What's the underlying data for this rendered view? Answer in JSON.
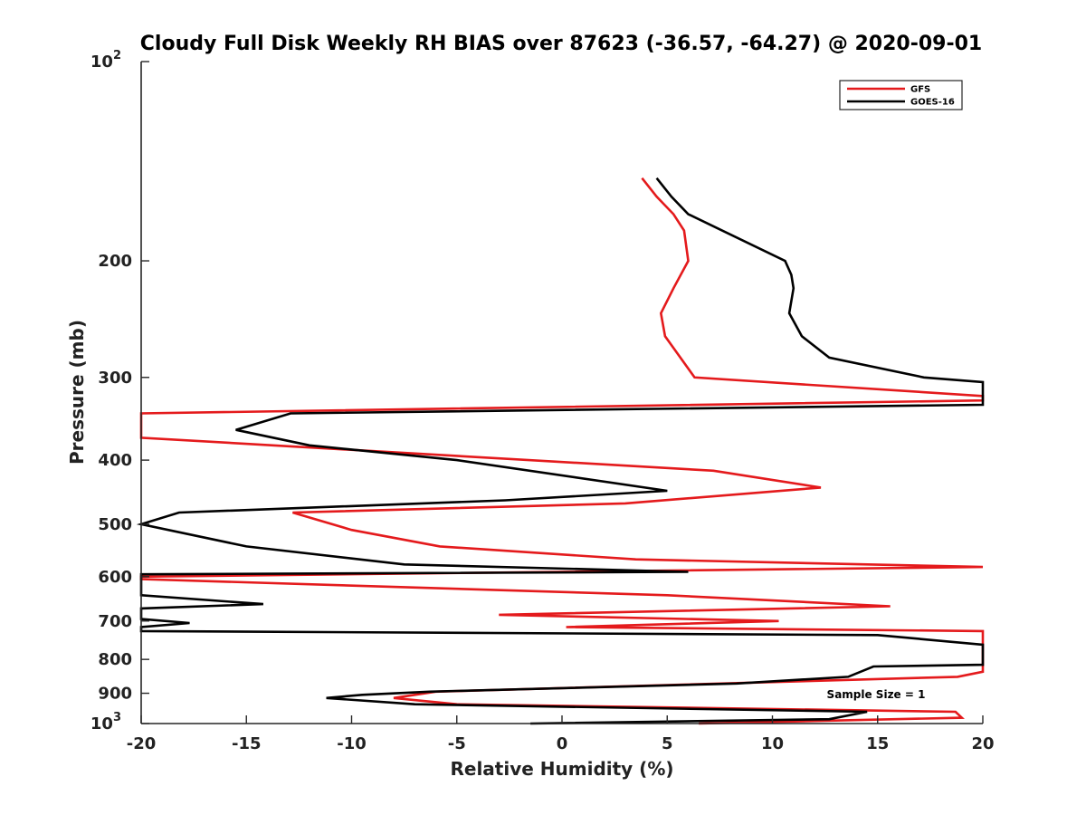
{
  "chart_data": {
    "type": "line",
    "title": "Cloudy Full Disk Weekly RH BIAS over 87623 (-36.57, -64.27) @ 2020-09-01",
    "xlabel": "Relative Humidity (%)",
    "ylabel": "Pressure (mb)",
    "xlim": [
      -20,
      20
    ],
    "ylim": [
      100,
      1000
    ],
    "yscale": "log",
    "y_reversed": true,
    "grid": false,
    "legend_position": "top-right",
    "x_ticks": [
      {
        "value": -20,
        "label": "-20"
      },
      {
        "value": -15,
        "label": "-15"
      },
      {
        "value": -10,
        "label": "-10"
      },
      {
        "value": -5,
        "label": "-5"
      },
      {
        "value": 0,
        "label": "0"
      },
      {
        "value": 5,
        "label": "5"
      },
      {
        "value": 10,
        "label": "10"
      },
      {
        "value": 15,
        "label": "15"
      },
      {
        "value": 20,
        "label": "20"
      }
    ],
    "y_ticks": [
      {
        "value": 100,
        "label": "10",
        "sup": "2"
      },
      {
        "value": 200,
        "label": "200"
      },
      {
        "value": 300,
        "label": "300"
      },
      {
        "value": 400,
        "label": "400"
      },
      {
        "value": 500,
        "label": "500"
      },
      {
        "value": 600,
        "label": "600"
      },
      {
        "value": 700,
        "label": "700"
      },
      {
        "value": 800,
        "label": "800"
      },
      {
        "value": 900,
        "label": "900"
      },
      {
        "value": 1000,
        "label": "10",
        "sup": "3"
      }
    ],
    "annotation": "Sample Size = 1",
    "series": [
      {
        "name": "GFS",
        "color": "#e41a1c",
        "points": [
          [
            3.8,
            150
          ],
          [
            4.5,
            160
          ],
          [
            5.3,
            170
          ],
          [
            5.8,
            180
          ],
          [
            6.0,
            200
          ],
          [
            5.3,
            220
          ],
          [
            4.7,
            240
          ],
          [
            4.9,
            260
          ],
          [
            6.3,
            300
          ],
          [
            20,
            320
          ],
          [
            20,
            325
          ],
          [
            -20,
            340
          ],
          [
            -20,
            370
          ],
          [
            7.2,
            415
          ],
          [
            12.3,
            440
          ],
          [
            3.0,
            465
          ],
          [
            -12.8,
            480
          ],
          [
            -10.0,
            510
          ],
          [
            -5.8,
            540
          ],
          [
            3.5,
            565
          ],
          [
            20,
            580
          ],
          [
            -20,
            600
          ],
          [
            -20,
            605
          ],
          [
            5.0,
            640
          ],
          [
            15.6,
            665
          ],
          [
            -3.0,
            685
          ],
          [
            10.3,
            700
          ],
          [
            0.2,
            715
          ],
          [
            20,
            725
          ],
          [
            20,
            835
          ],
          [
            18.8,
            850
          ],
          [
            -6.0,
            895
          ],
          [
            -8.0,
            915
          ],
          [
            -5.0,
            935
          ],
          [
            18.7,
            960
          ],
          [
            19.0,
            980
          ],
          [
            6.5,
            1000
          ]
        ]
      },
      {
        "name": "GOES-16",
        "color": "#000000",
        "points": [
          [
            4.5,
            150
          ],
          [
            5.2,
            160
          ],
          [
            6.0,
            170
          ],
          [
            10.6,
            200
          ],
          [
            10.9,
            210
          ],
          [
            11.0,
            220
          ],
          [
            10.8,
            240
          ],
          [
            11.4,
            260
          ],
          [
            12.7,
            280
          ],
          [
            17.2,
            300
          ],
          [
            20,
            305
          ],
          [
            20,
            330
          ],
          [
            -12.9,
            340
          ],
          [
            -15.5,
            360
          ],
          [
            -12.0,
            380
          ],
          [
            -5.0,
            400
          ],
          [
            5.0,
            445
          ],
          [
            -2.7,
            460
          ],
          [
            -18.2,
            480
          ],
          [
            -20,
            500
          ],
          [
            -15.0,
            540
          ],
          [
            -7.5,
            575
          ],
          [
            6.0,
            590
          ],
          [
            -20,
            595
          ],
          [
            -20,
            640
          ],
          [
            -14.2,
            660
          ],
          [
            -20,
            670
          ],
          [
            -20,
            695
          ],
          [
            -17.7,
            705
          ],
          [
            -20,
            715
          ],
          [
            -20,
            725
          ],
          [
            15.0,
            735
          ],
          [
            20,
            760
          ],
          [
            20,
            815
          ],
          [
            14.8,
            820
          ],
          [
            13.6,
            850
          ],
          [
            8.3,
            870
          ],
          [
            -6.3,
            895
          ],
          [
            -9.5,
            905
          ],
          [
            -11.2,
            915
          ],
          [
            -7.0,
            935
          ],
          [
            14.5,
            960
          ],
          [
            12.7,
            985
          ],
          [
            -1.5,
            1000
          ]
        ]
      }
    ]
  }
}
